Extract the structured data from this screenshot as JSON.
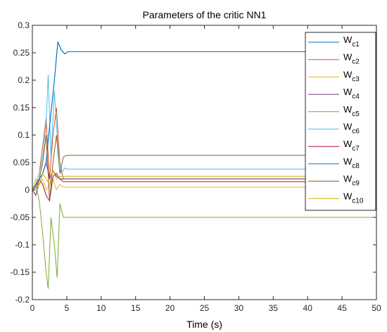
{
  "chart_data": {
    "type": "line",
    "title": "Parameters of the critic NN1",
    "xlabel": "Time (s)",
    "ylabel": "",
    "xlim": [
      0,
      50
    ],
    "ylim": [
      -0.2,
      0.3
    ],
    "xticks": [
      0,
      5,
      10,
      15,
      20,
      25,
      30,
      35,
      40,
      45,
      50
    ],
    "yticks": [
      -0.2,
      -0.15,
      -0.1,
      -0.05,
      0,
      0.05,
      0.1,
      0.15,
      0.2,
      0.25,
      0.3
    ],
    "grid": false,
    "legend_position": "top-right",
    "series": [
      {
        "name": "c1",
        "color": "#0072bd",
        "x": [
          0,
          0.5,
          1,
          1.5,
          2,
          2.3,
          2.7,
          3.2,
          3.7,
          4.2,
          4.7,
          5.2,
          6,
          50
        ],
        "y": [
          0,
          0.01,
          0.02,
          0.03,
          0.05,
          0.09,
          0.14,
          0.2,
          0.27,
          0.255,
          0.248,
          0.252,
          0.252,
          0.252
        ]
      },
      {
        "name": "c2",
        "color": "#d95319",
        "x": [
          0,
          0.5,
          1,
          1.5,
          2,
          2.5,
          3,
          3.5,
          4,
          4.5,
          5,
          50
        ],
        "y": [
          0,
          0.01,
          0.03,
          0.08,
          0.13,
          0.02,
          0.1,
          0.15,
          0.05,
          0.02,
          0.02,
          0.02
        ]
      },
      {
        "name": "c3",
        "color": "#edb120",
        "x": [
          0,
          0.5,
          1,
          1.5,
          2,
          2.5,
          3,
          3.5,
          4,
          4.5,
          5,
          50
        ],
        "y": [
          0,
          -0.01,
          0.01,
          0.02,
          0.0,
          0.01,
          0.02,
          0.0,
          0.01,
          0.005,
          0.005,
          0.005
        ]
      },
      {
        "name": "c4",
        "color": "#7e2f8e",
        "x": [
          0,
          0.5,
          1,
          1.5,
          2,
          2.5,
          3,
          3.5,
          4,
          4.5,
          5,
          50
        ],
        "y": [
          0,
          -0.01,
          0.02,
          0.03,
          0.05,
          0.02,
          0.035,
          0.025,
          0.02,
          0.02,
          0.02,
          0.02
        ]
      },
      {
        "name": "c5",
        "color": "#77ac30",
        "x": [
          0,
          0.5,
          1,
          1.5,
          2,
          2.3,
          2.7,
          3.2,
          3.6,
          4,
          4.5,
          5,
          50
        ],
        "y": [
          0,
          0.01,
          -0.02,
          -0.08,
          -0.15,
          -0.18,
          -0.05,
          -0.1,
          -0.16,
          -0.025,
          -0.05,
          -0.05,
          -0.05
        ]
      },
      {
        "name": "c6",
        "color": "#4dbeee",
        "x": [
          0,
          0.5,
          1,
          1.5,
          2,
          2.3,
          2.7,
          3.2,
          3.7,
          4.2,
          4.7,
          5,
          50
        ],
        "y": [
          0,
          0.01,
          0.03,
          0.06,
          0.12,
          0.21,
          0.06,
          0.18,
          0.08,
          0.03,
          0.04,
          0.038,
          0.038
        ]
      },
      {
        "name": "c7",
        "color": "#a2142f",
        "x": [
          0,
          0.5,
          1,
          1.5,
          2,
          2.5,
          3,
          3.5,
          4,
          4.5,
          5,
          50
        ],
        "y": [
          0,
          0.005,
          0.02,
          0.01,
          -0.01,
          -0.02,
          0.025,
          0.03,
          0.02,
          0.015,
          0.015,
          0.015
        ]
      },
      {
        "name": "c8",
        "color": "#0072bd",
        "x": [
          0,
          0.5,
          1,
          1.5,
          2,
          2.3,
          2.7,
          3.2,
          3.7,
          4.2,
          4.7,
          5.2,
          6,
          50
        ],
        "y": [
          0,
          0.01,
          0.02,
          0.03,
          0.05,
          0.09,
          0.14,
          0.2,
          0.27,
          0.255,
          0.248,
          0.252,
          0.252,
          0.252
        ]
      },
      {
        "name": "c9",
        "color": "#8b5a2b",
        "x": [
          0,
          0.5,
          1,
          1.5,
          2,
          2.5,
          3,
          3.5,
          4,
          4.5,
          5,
          6,
          50
        ],
        "y": [
          0,
          0.005,
          0.02,
          0.05,
          0.1,
          -0.02,
          0.05,
          0.1,
          0.03,
          0.06,
          0.063,
          0.063,
          0.063
        ]
      },
      {
        "name": "c10",
        "color": "#c8b400",
        "x": [
          0,
          0.5,
          1,
          1.5,
          2,
          2.5,
          3,
          3.5,
          4,
          4.5,
          5,
          50
        ],
        "y": [
          0,
          0.02,
          0.01,
          0.03,
          0.02,
          0.01,
          0.035,
          0.02,
          0.025,
          0.025,
          0.025,
          0.025
        ]
      }
    ]
  }
}
